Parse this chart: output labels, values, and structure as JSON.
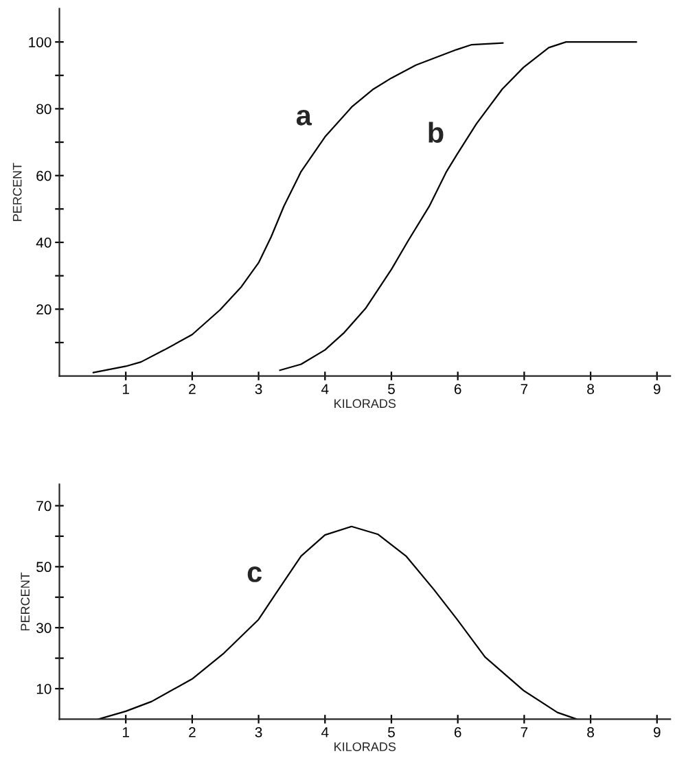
{
  "chart_data": [
    {
      "type": "line",
      "xlabel": "KILORADS",
      "ylabel": "PERCENT",
      "xlim": [
        0,
        9.2
      ],
      "ylim": [
        0,
        110
      ],
      "xticks": [
        1,
        2,
        3,
        4,
        5,
        6,
        7,
        8,
        9
      ],
      "yticks": [
        {
          "value": 10,
          "label": null
        },
        20,
        {
          "value": 30,
          "label": null
        },
        40,
        {
          "value": 50,
          "label": null
        },
        60,
        {
          "value": 70,
          "label": null
        },
        80,
        {
          "value": 90,
          "label": null
        },
        100
      ],
      "grid": false,
      "legend": false,
      "series": [
        {
          "color": "#000000",
          "x": [
            0.51,
            1.0,
            1.23,
            1.58,
            2.0,
            2.42,
            2.74,
            3.0,
            3.19,
            3.38,
            3.64,
            4.0,
            4.41,
            4.73,
            5.0,
            5.37,
            5.98,
            6.21,
            6.68
          ],
          "values": [
            1.0,
            2.9,
            4.2,
            7.8,
            12.4,
            19.8,
            26.7,
            33.9,
            41.7,
            50.8,
            61.2,
            71.6,
            80.7,
            85.9,
            89.2,
            93.1,
            97.7,
            99.2,
            99.7
          ]
        },
        {
          "color": "#000000",
          "x": [
            3.32,
            3.64,
            4.0,
            4.29,
            4.61,
            5.0,
            5.25,
            5.57,
            5.83,
            5.99,
            6.28,
            6.67,
            6.99,
            7.37,
            7.63,
            8.0,
            8.69
          ],
          "values": [
            1.7,
            3.5,
            7.8,
            13.0,
            20.2,
            31.9,
            40.4,
            50.8,
            61.2,
            66.4,
            75.5,
            85.9,
            92.4,
            98.3,
            100,
            100,
            100
          ]
        }
      ],
      "annotations": [
        {
          "text": "a",
          "x": 4.0,
          "y": 71.6
        },
        {
          "text": "b",
          "x": 6.0,
          "y": 66.4
        }
      ]
    },
    {
      "type": "line",
      "xlabel": "KILORADS",
      "ylabel": "PERCENT",
      "xlim": [
        0,
        9.2
      ],
      "ylim": [
        0,
        77
      ],
      "xticks": [
        1,
        2,
        3,
        4,
        5,
        6,
        7,
        8,
        9
      ],
      "yticks": [
        10,
        {
          "value": 20,
          "label": null
        },
        30,
        {
          "value": 40,
          "label": null
        },
        50,
        {
          "value": 60,
          "label": null
        },
        70
      ],
      "grid": false,
      "legend": false,
      "series": [
        {
          "color": "#000000",
          "x": [
            0.59,
            1.0,
            1.39,
            2.0,
            2.48,
            3.0,
            3.26,
            3.64,
            4.0,
            4.4,
            4.8,
            5.22,
            5.64,
            5.99,
            6.41,
            6.99,
            7.5,
            7.79
          ],
          "values": [
            0,
            2.6,
            5.8,
            13.2,
            21.7,
            32.7,
            41.2,
            53.5,
            60.4,
            63.2,
            60.6,
            53.5,
            42.5,
            32.7,
            20.4,
            9.4,
            2.2,
            0
          ]
        }
      ],
      "annotations": [
        {
          "text": "c",
          "x": 3.26,
          "y": 41.2
        }
      ]
    }
  ]
}
